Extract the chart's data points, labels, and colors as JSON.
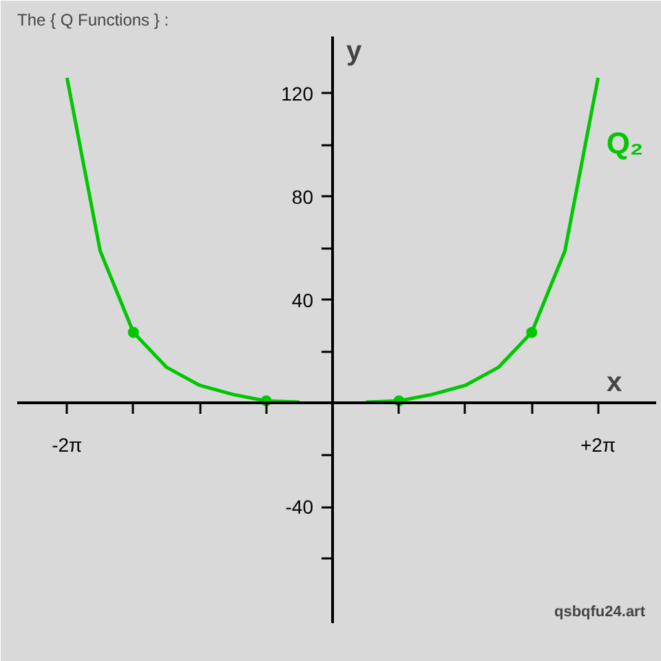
{
  "chart_data": {
    "type": "line",
    "title": "The { Q Functions } :",
    "xlabel": "x",
    "ylabel": "y",
    "annotations": [
      "qsbqfu24.art"
    ],
    "categories": [
      "-2π",
      null,
      null,
      null,
      null,
      null,
      null,
      null,
      null,
      null,
      null,
      null,
      null,
      null,
      null,
      null,
      "+2π"
    ],
    "ylim": [
      -85,
      142
    ],
    "yticks": [
      -40,
      40,
      80,
      120
    ],
    "grid": false,
    "series": [
      {
        "name": "Q₂",
        "color": "#00c800",
        "marker": "none",
        "line_style": "solid",
        "values": [
          126,
          59,
          27.5,
          14,
          7,
          3.5,
          1,
          0.5,
          null,
          0.5,
          1,
          3.5,
          7,
          14,
          27.5,
          59,
          126
        ]
      },
      {
        "type": "scatter",
        "color": "#00c800",
        "marker": "circle",
        "values": [
          null,
          null,
          27.5,
          null,
          null,
          null,
          1,
          null,
          null,
          null,
          1,
          null,
          null,
          null,
          27.5,
          null,
          null
        ]
      }
    ]
  }
}
